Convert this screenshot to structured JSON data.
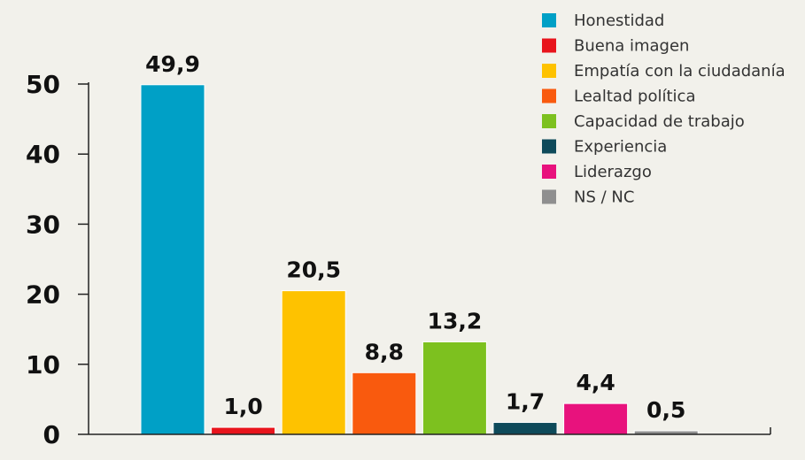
{
  "chart_data": {
    "type": "bar",
    "categories": [
      "Honestidad",
      "Buena imagen",
      "Empatía con la ciudadanía",
      "Lealtad política",
      "Capacidad de trabajo",
      "Experiencia",
      "Liderazgo",
      "NS / NC"
    ],
    "values": [
      49.9,
      1.0,
      20.5,
      8.8,
      13.2,
      1.7,
      4.4,
      0.5
    ],
    "value_labels": [
      "49,9",
      "1,0",
      "20,5",
      "8,8",
      "13,2",
      "1,7",
      "4,4",
      "0,5"
    ],
    "colors": [
      "#00a0c6",
      "#e8141c",
      "#fec200",
      "#f95a0e",
      "#7dc11f",
      "#0e4a5a",
      "#e8127d",
      "#8f8f8f"
    ],
    "ylim": [
      0,
      50
    ],
    "yticks": [
      0,
      10,
      20,
      30,
      40,
      50
    ],
    "legend": "top-right"
  }
}
